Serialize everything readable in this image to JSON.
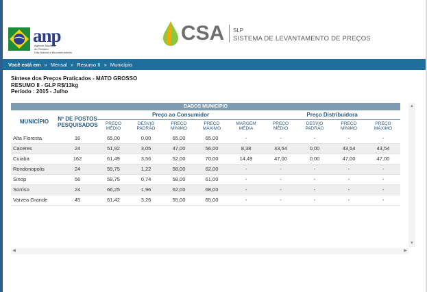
{
  "header": {
    "anp_logo_text": "anp",
    "anp_logo_subtitle": [
      "Agência Nacional",
      "do Petróleo,",
      "Gás Natural e Biocombustíveis"
    ],
    "csa_logo_text": "CSA",
    "csa_abbr": "SLP",
    "csa_full": "SISTEMA DE LEVANTAMENTO DE PREÇOS",
    "colors": {
      "anp_blue": "#2b3e8c",
      "csa_green": "#8dc63f",
      "csa_gold": "#f2a900",
      "bar_blue": "#1f6f9c"
    }
  },
  "breadcrumb": {
    "lead": "Você está em",
    "separator": "»",
    "items": [
      "Mensal",
      "Resumo II",
      "Município"
    ]
  },
  "page": {
    "title": "Síntese dos Preços Praticados - MATO GROSSO",
    "subtitle": "RESUMO II - GLP R$/13kg",
    "period": "Período : 2015 - Julho"
  },
  "table": {
    "title": "DADOS MUNICÍPIO",
    "col_municipio": "MUNICÍPIO",
    "col_postos": [
      "Nº DE POSTOS",
      "PESQUISADOS"
    ],
    "group_consumidor": "Preço ao Consumidor",
    "group_distribuidora": "Preço Distribuidora",
    "consumidor_cols": [
      [
        "PREÇO",
        "MÉDIO"
      ],
      [
        "DESVIO",
        "PADRÃO"
      ],
      [
        "PREÇO",
        "MÍNIMO"
      ],
      [
        "PREÇO",
        "MÁXIMO"
      ],
      [
        "MARGEM",
        "MÉDIA"
      ]
    ],
    "distribuidora_cols": [
      [
        "PREÇO",
        "MÉDIO"
      ],
      [
        "DESVIO",
        "PADRÃO"
      ],
      [
        "PREÇO",
        "MÍNIMO"
      ],
      [
        "PREÇO",
        "MÁXIMO"
      ]
    ],
    "rows": [
      [
        "Alta Floresta",
        "16",
        "65,00",
        "0,00",
        "65,00",
        "65,00",
        "-",
        "-",
        "-",
        "-",
        "-"
      ],
      [
        "Caceres",
        "24",
        "51,92",
        "3,05",
        "47,00",
        "56,00",
        "8,38",
        "43,54",
        "0,00",
        "43,54",
        "43,54"
      ],
      [
        "Cuiaba",
        "162",
        "61,49",
        "3,56",
        "52,00",
        "70,00",
        "14,49",
        "47,00",
        "0,00",
        "47,00",
        "47,00"
      ],
      [
        "Rondonopolis",
        "24",
        "59,75",
        "1,22",
        "58,00",
        "62,00",
        "-",
        "-",
        "-",
        "-",
        "-"
      ],
      [
        "Sinop",
        "56",
        "59,75",
        "0,74",
        "58,00",
        "61,00",
        "-",
        "-",
        "-",
        "-",
        "-"
      ],
      [
        "Sorriso",
        "24",
        "66,25",
        "1,96",
        "62,00",
        "68,00",
        "-",
        "-",
        "-",
        "-",
        "-"
      ],
      [
        "Varzea Grande",
        "45",
        "61,42",
        "3,26",
        "55,00",
        "65,00",
        "-",
        "-",
        "-",
        "-",
        "-"
      ]
    ]
  },
  "icons": {
    "scroll_up": "scroll-up-arrow-icon",
    "scroll_down": "scroll-down-arrow-icon",
    "scroll_left": "scroll-left-arrow-icon",
    "scroll_right": "scroll-right-arrow-icon"
  }
}
